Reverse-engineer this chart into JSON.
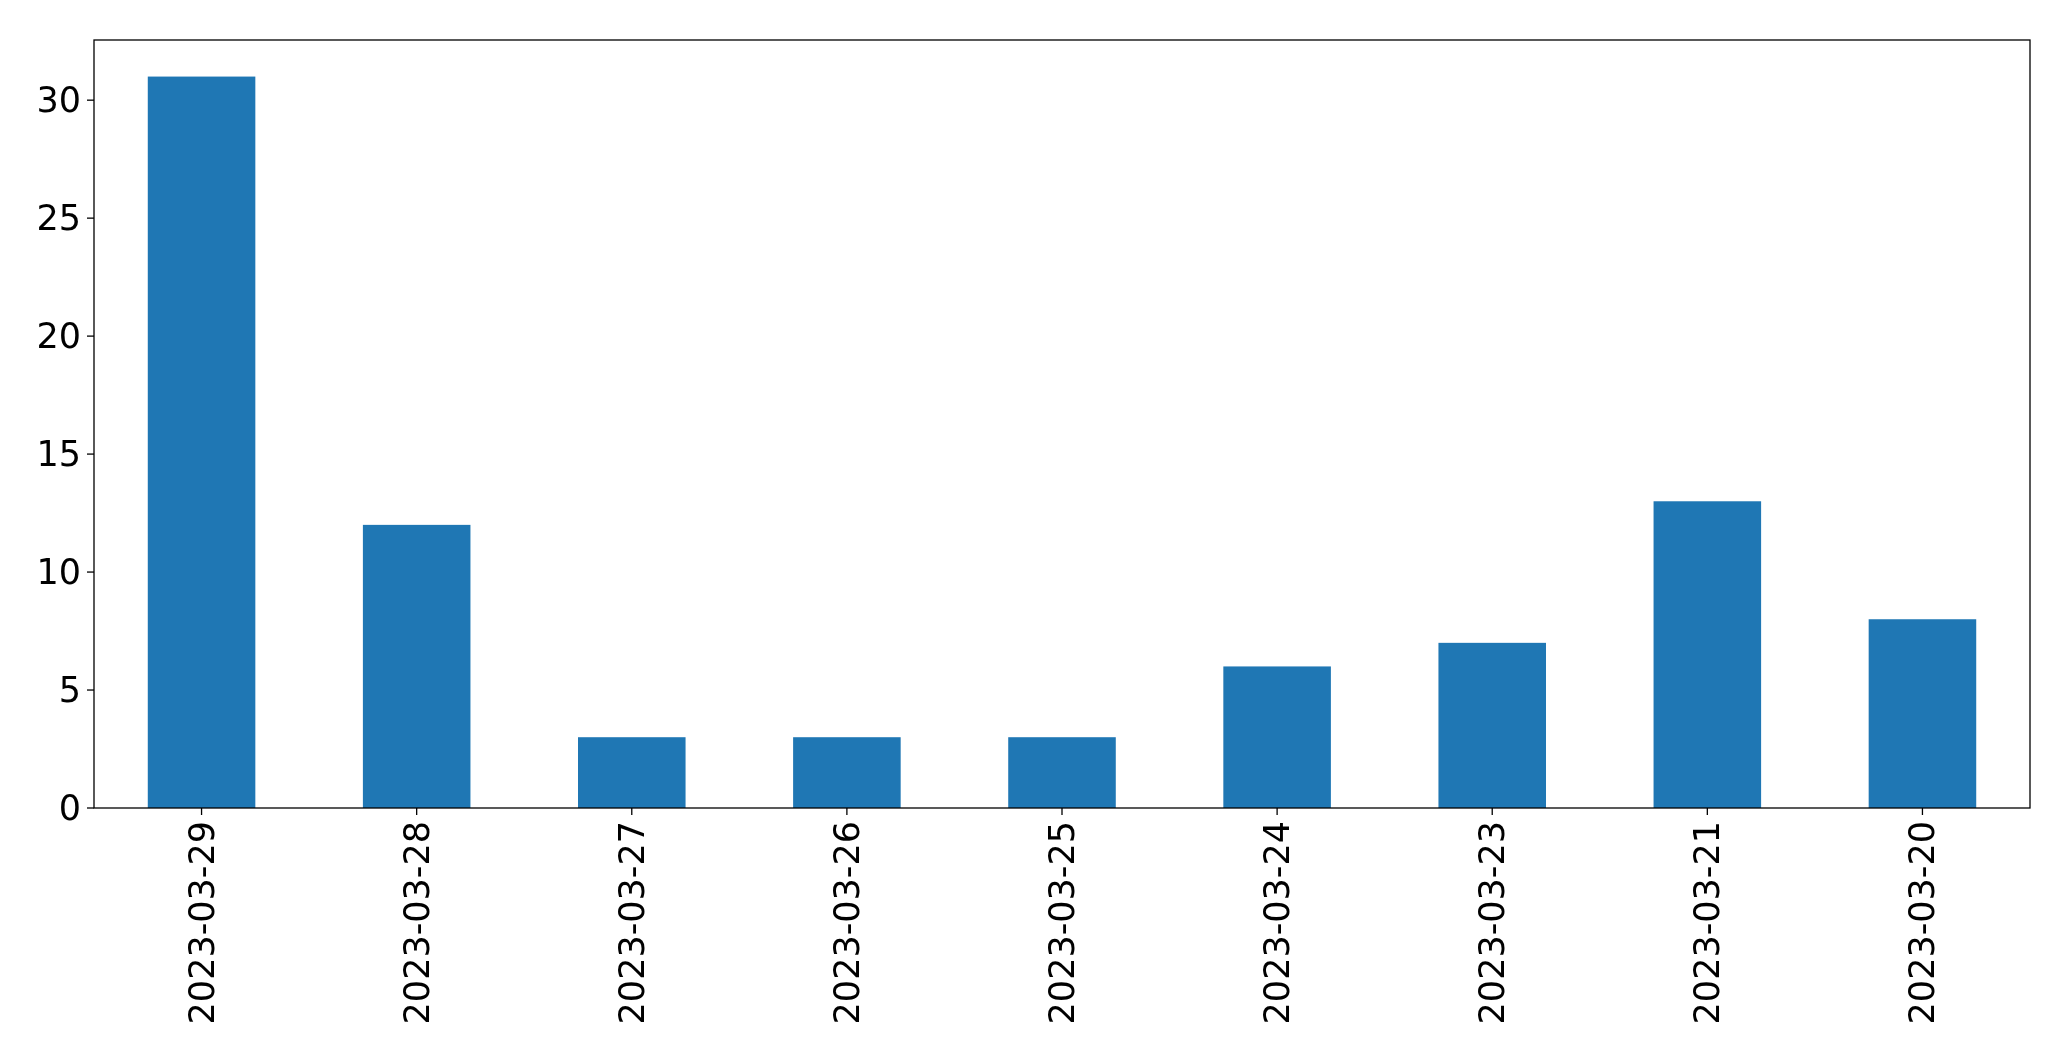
{
  "chart_data": {
    "type": "bar",
    "categories": [
      "2023-03-29",
      "2023-03-28",
      "2023-03-27",
      "2023-03-26",
      "2023-03-25",
      "2023-03-24",
      "2023-03-23",
      "2023-03-21",
      "2023-03-20"
    ],
    "values": [
      31,
      12,
      3,
      3,
      3,
      6,
      7,
      13,
      8
    ],
    "color": "#1f77b4",
    "ylim": [
      0,
      32.55
    ],
    "yticks": [
      0,
      5,
      10,
      15,
      20,
      25,
      30
    ]
  }
}
